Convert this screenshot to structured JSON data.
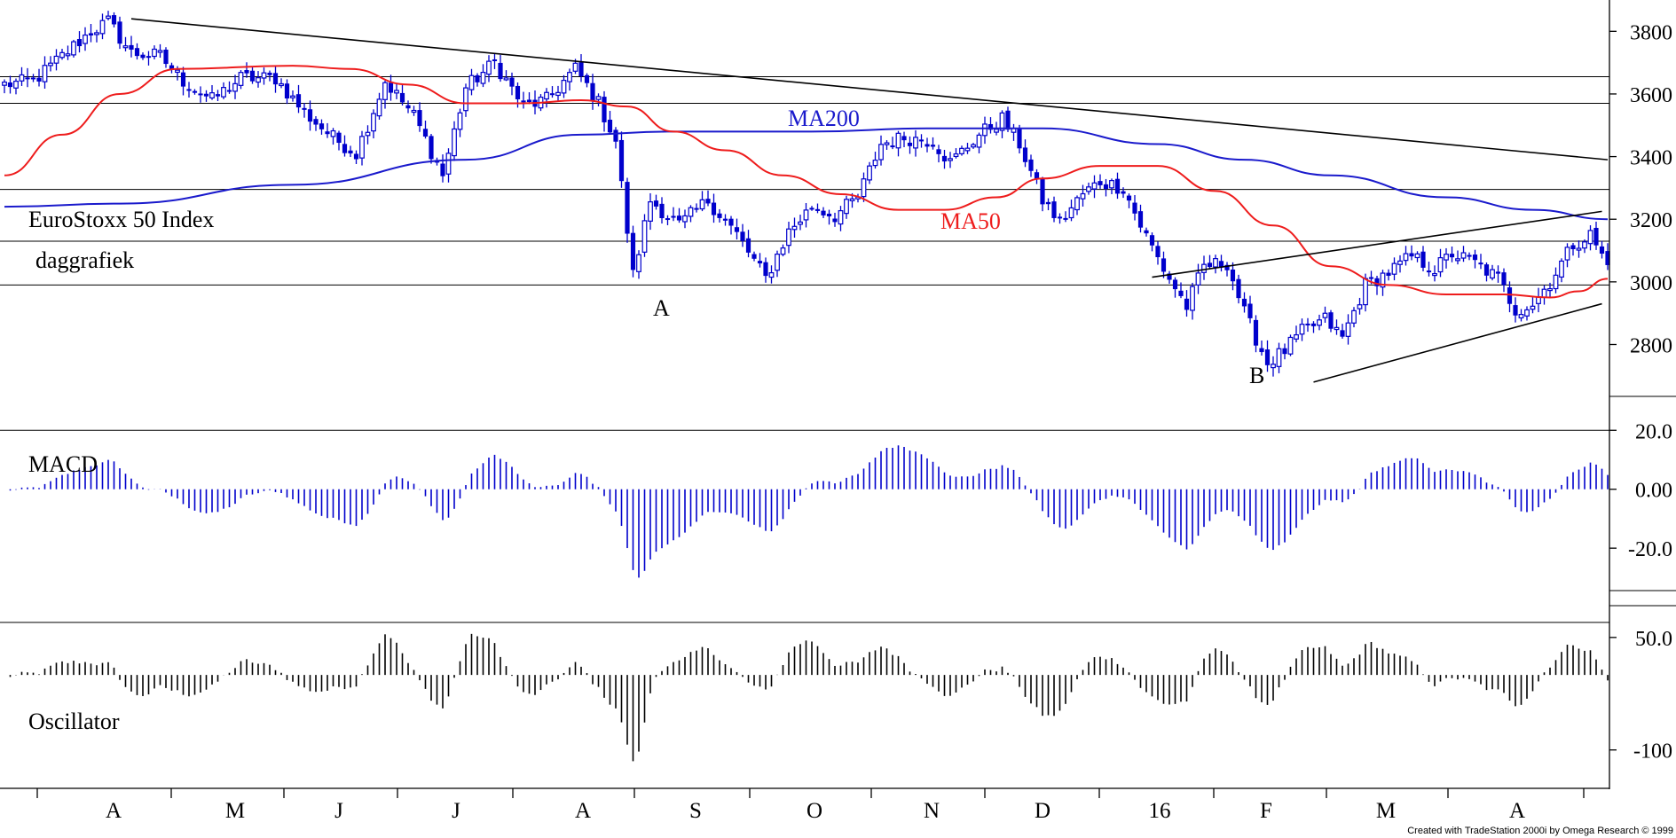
{
  "footer": {
    "credit": "Created with TradeStation 2000i by Omega Research © 1999"
  },
  "colors": {
    "candle": "#0000cc",
    "ma200": "#1a1acc",
    "ma50": "#ee1c1c",
    "trend": "#000000",
    "histogram_macd": "#0000cc",
    "histogram_osc": "#000000"
  },
  "chart_data": [
    {
      "type": "candlestick",
      "panel": "price",
      "title": "EuroStoxx 50 Index",
      "subtitle": "daggrafiek",
      "ylim": [
        2640,
        3900
      ],
      "yticks": [
        2800,
        3000,
        3200,
        3400,
        3600,
        3800
      ],
      "ytick_labels": [
        "2800",
        "3000",
        "3200",
        "3400",
        "3600",
        "3800"
      ],
      "horizontal_levels": [
        3655,
        3570,
        3295,
        3130,
        2990
      ],
      "x_months": [
        "A",
        "M",
        "J",
        "J",
        "A",
        "S",
        "O",
        "N",
        "D",
        "16",
        "F",
        "M",
        "A"
      ],
      "anchors": [
        [
          0,
          3630
        ],
        [
          5,
          3640
        ],
        [
          10,
          3720
        ],
        [
          15,
          3800
        ],
        [
          18,
          3830
        ],
        [
          22,
          3730
        ],
        [
          27,
          3720
        ],
        [
          31,
          3640
        ],
        [
          36,
          3580
        ],
        [
          41,
          3650
        ],
        [
          47,
          3650
        ],
        [
          52,
          3540
        ],
        [
          57,
          3460
        ],
        [
          61,
          3410
        ],
        [
          66,
          3640
        ],
        [
          71,
          3530
        ],
        [
          76,
          3340
        ],
        [
          80,
          3620
        ],
        [
          85,
          3700
        ],
        [
          90,
          3560
        ],
        [
          94,
          3580
        ],
        [
          99,
          3680
        ],
        [
          103,
          3570
        ],
        [
          106,
          3450
        ],
        [
          109,
          3020
        ],
        [
          112,
          3260
        ],
        [
          117,
          3180
        ],
        [
          122,
          3260
        ],
        [
          127,
          3150
        ],
        [
          132,
          3010
        ],
        [
          136,
          3160
        ],
        [
          140,
          3240
        ],
        [
          144,
          3210
        ],
        [
          148,
          3270
        ],
        [
          152,
          3440
        ],
        [
          156,
          3460
        ],
        [
          161,
          3450
        ],
        [
          164,
          3380
        ],
        [
          169,
          3470
        ],
        [
          173,
          3520
        ],
        [
          176,
          3440
        ],
        [
          180,
          3260
        ],
        [
          183,
          3190
        ],
        [
          187,
          3280
        ],
        [
          190,
          3320
        ],
        [
          194,
          3300
        ],
        [
          197,
          3180
        ],
        [
          201,
          3040
        ],
        [
          205,
          2920
        ],
        [
          208,
          3050
        ],
        [
          212,
          3060
        ],
        [
          215,
          2900
        ],
        [
          219,
          2740
        ],
        [
          222,
          2780
        ],
        [
          225,
          2840
        ],
        [
          229,
          2880
        ],
        [
          232,
          2820
        ],
        [
          236,
          2990
        ],
        [
          240,
          3030
        ],
        [
          244,
          3080
        ],
        [
          248,
          3040
        ],
        [
          251,
          3090
        ],
        [
          255,
          3060
        ],
        [
          259,
          3010
        ],
        [
          262,
          2910
        ],
        [
          265,
          2930
        ],
        [
          268,
          3000
        ],
        [
          272,
          3120
        ],
        [
          275,
          3150
        ],
        [
          278,
          3050
        ]
      ],
      "series": [
        {
          "name": "MA200",
          "points": [
            [
              0,
              3240
            ],
            [
              20,
              3250
            ],
            [
              50,
              3310
            ],
            [
              80,
              3390
            ],
            [
              100,
              3470
            ],
            [
              115,
              3480
            ],
            [
              140,
              3480
            ],
            [
              160,
              3490
            ],
            [
              180,
              3490
            ],
            [
              200,
              3440
            ],
            [
              215,
              3390
            ],
            [
              230,
              3340
            ],
            [
              250,
              3270
            ],
            [
              265,
              3230
            ],
            [
              278,
              3200
            ]
          ]
        },
        {
          "name": "MA50",
          "points": [
            [
              0,
              3340
            ],
            [
              10,
              3470
            ],
            [
              20,
              3600
            ],
            [
              30,
              3680
            ],
            [
              50,
              3690
            ],
            [
              60,
              3680
            ],
            [
              70,
              3630
            ],
            [
              80,
              3570
            ],
            [
              90,
              3570
            ],
            [
              100,
              3580
            ],
            [
              108,
              3560
            ],
            [
              116,
              3480
            ],
            [
              125,
              3420
            ],
            [
              135,
              3340
            ],
            [
              145,
              3280
            ],
            [
              155,
              3230
            ],
            [
              163,
              3230
            ],
            [
              172,
              3270
            ],
            [
              180,
              3330
            ],
            [
              190,
              3370
            ],
            [
              200,
              3370
            ],
            [
              210,
              3290
            ],
            [
              220,
              3180
            ],
            [
              230,
              3050
            ],
            [
              240,
              2990
            ],
            [
              250,
              2960
            ],
            [
              260,
              2960
            ],
            [
              268,
              2950
            ],
            [
              273,
              2970
            ],
            [
              278,
              3010
            ]
          ]
        },
        {
          "name": "trendline-top",
          "points": [
            [
              22,
              3840
            ],
            [
              278,
              3390
            ]
          ]
        },
        {
          "name": "channel-upper",
          "points": [
            [
              199,
              3015
            ],
            [
              277,
              3225
            ]
          ]
        },
        {
          "name": "channel-lower",
          "points": [
            [
              227,
              2680
            ],
            [
              277,
              2930
            ]
          ]
        }
      ],
      "labels": [
        {
          "text": "MA200",
          "x": 142,
          "y": 3520
        },
        {
          "text": "MA50",
          "x": 162,
          "y": 3180
        }
      ],
      "annotations": [
        {
          "text": "A",
          "x": 114,
          "y": 2900
        },
        {
          "text": "B",
          "x": 218,
          "y": 2730
        }
      ]
    },
    {
      "type": "bar",
      "panel": "macd",
      "title": "MACD",
      "ylim": [
        -35,
        27
      ],
      "yticks": [
        20,
        0,
        -20
      ],
      "ytick_labels": [
        "20.0",
        "0.00",
        "-20.0"
      ],
      "reference_level": 20
    },
    {
      "type": "bar",
      "panel": "oscillator",
      "title": "Oscillator",
      "ylim": [
        -150,
        90
      ],
      "yticks": [
        50,
        -100
      ],
      "ytick_labels": [
        "50.0",
        "-100"
      ],
      "reference_level": 70
    }
  ]
}
